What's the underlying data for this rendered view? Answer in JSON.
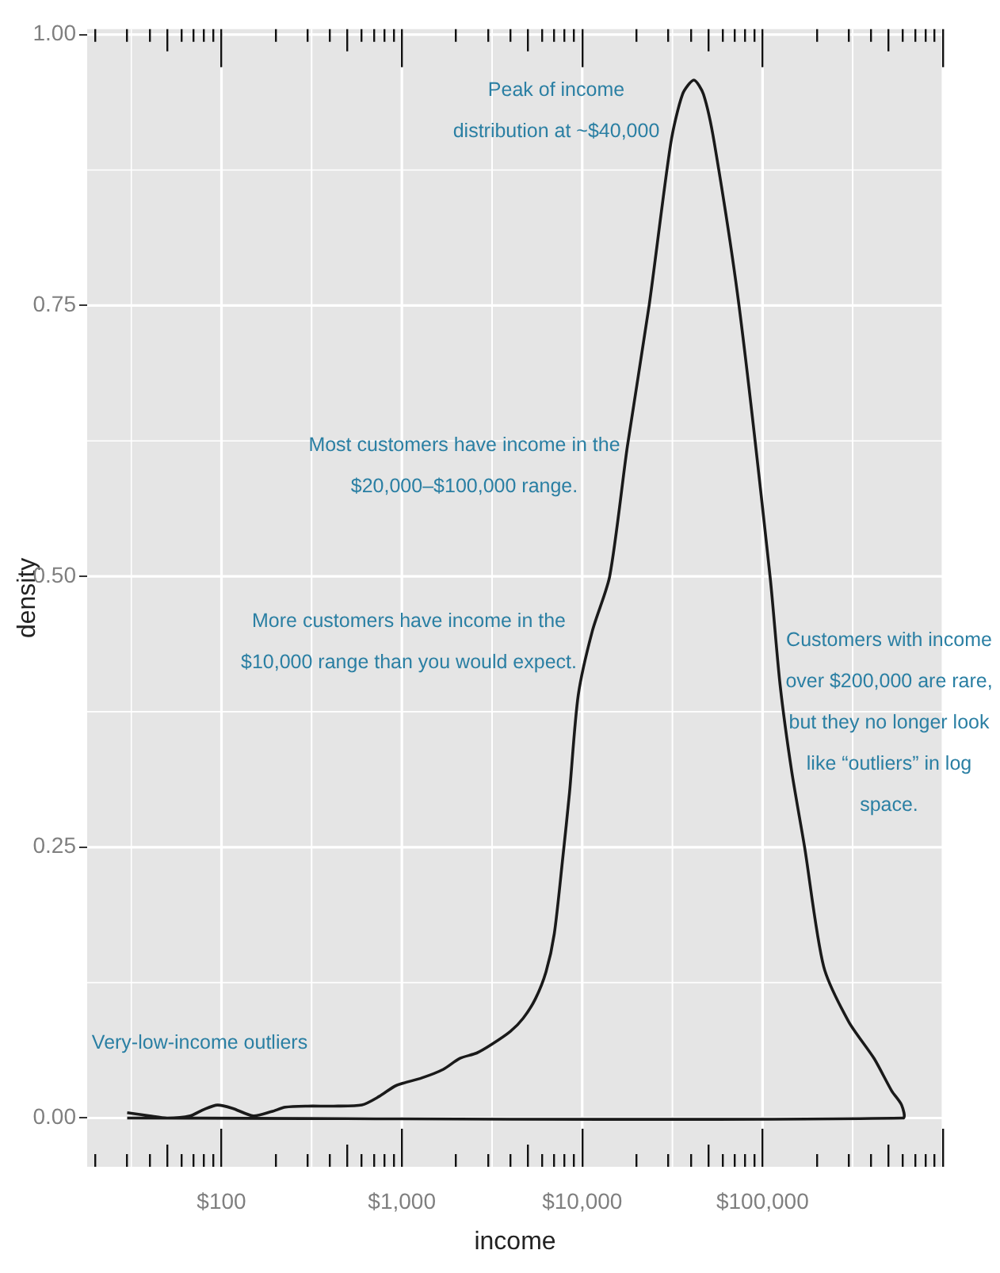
{
  "chart_data": {
    "type": "line",
    "xlabel": "income",
    "ylabel": "density",
    "log": "x",
    "grid": true,
    "xlim": [
      18,
      1000000
    ],
    "ylim": [
      -0.045,
      1.005
    ],
    "xticks": [
      {
        "value": 20,
        "label": null
      },
      {
        "value": 30,
        "label": null
      },
      {
        "value": 40,
        "label": null
      },
      {
        "value": 50,
        "label": null
      },
      {
        "value": 60,
        "label": null
      },
      {
        "value": 70,
        "label": null
      },
      {
        "value": 80,
        "label": null
      },
      {
        "value": 90,
        "label": null
      },
      {
        "value": 100,
        "label": "$100"
      },
      {
        "value": 200,
        "label": null
      },
      {
        "value": 300,
        "label": null
      },
      {
        "value": 400,
        "label": null
      },
      {
        "value": 500,
        "label": null
      },
      {
        "value": 600,
        "label": null
      },
      {
        "value": 700,
        "label": null
      },
      {
        "value": 800,
        "label": null
      },
      {
        "value": 900,
        "label": null
      },
      {
        "value": 1000,
        "label": "$1,000"
      },
      {
        "value": 2000,
        "label": null
      },
      {
        "value": 3000,
        "label": null
      },
      {
        "value": 4000,
        "label": null
      },
      {
        "value": 5000,
        "label": null
      },
      {
        "value": 6000,
        "label": null
      },
      {
        "value": 7000,
        "label": null
      },
      {
        "value": 8000,
        "label": null
      },
      {
        "value": 9000,
        "label": null
      },
      {
        "value": 10000,
        "label": "$10,000"
      },
      {
        "value": 20000,
        "label": null
      },
      {
        "value": 30000,
        "label": null
      },
      {
        "value": 40000,
        "label": null
      },
      {
        "value": 50000,
        "label": null
      },
      {
        "value": 60000,
        "label": null
      },
      {
        "value": 70000,
        "label": null
      },
      {
        "value": 80000,
        "label": null
      },
      {
        "value": 90000,
        "label": null
      },
      {
        "value": 100000,
        "label": "$100,000"
      },
      {
        "value": 200000,
        "label": null
      },
      {
        "value": 300000,
        "label": null
      },
      {
        "value": 400000,
        "label": null
      },
      {
        "value": 500000,
        "label": null
      },
      {
        "value": 600000,
        "label": null
      },
      {
        "value": 700000,
        "label": null
      },
      {
        "value": 800000,
        "label": null
      },
      {
        "value": 900000,
        "label": null
      },
      {
        "value": 1000000,
        "label": null
      }
    ],
    "yticks": [
      {
        "value": 0,
        "label": "0.00"
      },
      {
        "value": 0.25,
        "label": "0.25"
      },
      {
        "value": 0.5,
        "label": "0.50"
      },
      {
        "value": 0.75,
        "label": "0.75"
      },
      {
        "value": 1,
        "label": "1.00"
      }
    ],
    "series": [
      {
        "color": "#1a1a1a",
        "x": [
          30,
          40,
          50,
          67,
          80,
          95,
          115,
          150,
          190,
          226,
          300,
          418,
          600,
          750,
          930,
          1290,
          1700,
          2090,
          2600,
          3150,
          4000,
          4700,
          5500,
          6300,
          7000,
          7800,
          8500,
          9500,
          11400,
          14200,
          17800,
          23500,
          31000,
          36000,
          41600,
          47000,
          54000,
          74000,
          110000,
          125000,
          145000,
          171000,
          218000,
          300000,
          415000,
          520000,
          590000,
          600000,
          30
        ],
        "values": [
          0.005,
          0.002,
          0.0,
          0.002,
          0.008,
          0.012,
          0.009,
          0.002,
          0.006,
          0.01,
          0.011,
          0.011,
          0.012,
          0.02,
          0.03,
          0.037,
          0.045,
          0.055,
          0.06,
          0.068,
          0.08,
          0.092,
          0.11,
          0.135,
          0.17,
          0.24,
          0.3,
          0.39,
          0.45,
          0.5,
          0.62,
          0.75,
          0.9,
          0.945,
          0.958,
          0.945,
          0.9,
          0.75,
          0.5,
          0.4,
          0.32,
          0.25,
          0.14,
          0.089,
          0.055,
          0.025,
          0.012,
          0.0,
          0.0
        ]
      }
    ],
    "annotations": [
      "Peak of income\ndistribution at ~$40,000",
      "Most customers have income in the\n$20,000–$100,000 range.",
      "More customers have income in the\n$10,000 range than you would expect.",
      "Customers with income\nover $200,000 are rare,\nbut they no longer look\nlike “outliers” in log\nspace.",
      "Very-low-income outliers"
    ]
  }
}
